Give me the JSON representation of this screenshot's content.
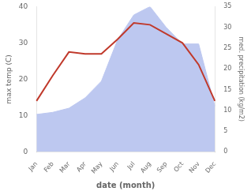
{
  "chart_data": {
    "type": "line",
    "categories": [
      "Jan",
      "Feb",
      "Mar",
      "Apr",
      "May",
      "Jun",
      "Jul",
      "Aug",
      "Sep",
      "Oct",
      "Nov",
      "Dec"
    ],
    "series": [
      {
        "type": "area",
        "color": "#bdc8f0",
        "axis": "y2",
        "values": [
          9,
          9.5,
          10.5,
          13,
          17,
          27,
          33,
          35,
          30,
          26,
          26,
          11
        ]
      },
      {
        "type": "line",
        "color": "#c0392b",
        "values": [
          14,
          21,
          27.5,
          27,
          27,
          31,
          35.5,
          35,
          32.5,
          30,
          24,
          14
        ]
      }
    ],
    "xlabel": "date (month)",
    "ylabel": "max temp (C)",
    "y2label": "med. precipitation (kg/m2)",
    "ylim": [
      0,
      40
    ],
    "yticks": [
      0,
      10,
      20,
      30,
      40
    ],
    "y2lim": [
      0,
      35
    ],
    "y2ticks": [
      0,
      5,
      10,
      15,
      20,
      25,
      30,
      35
    ],
    "grid": false
  }
}
